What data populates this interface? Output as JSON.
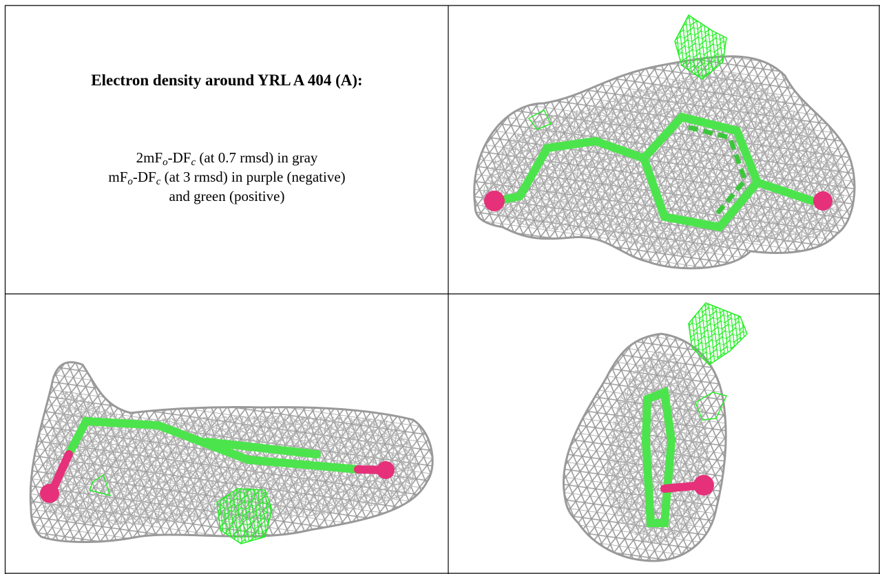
{
  "caption": {
    "title": "Electron density around YRL A 404 (A):",
    "lines": [
      [
        "2mF",
        "o",
        "-DF",
        "c",
        " (at 0.7 rmsd) in gray"
      ],
      [
        "mF",
        "o",
        "-DF",
        "c",
        " (at 3 rmsd) in purple (negative)"
      ],
      [
        "and green (positive)"
      ]
    ]
  }
}
